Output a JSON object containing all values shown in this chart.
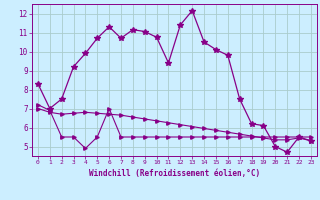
{
  "title": "",
  "xlabel": "Windchill (Refroidissement éolien,°C)",
  "bg_color": "#cceeff",
  "grid_color": "#aacccc",
  "line_color": "#880088",
  "xlim": [
    -0.5,
    23.5
  ],
  "ylim": [
    4.5,
    12.5
  ],
  "xticks": [
    0,
    1,
    2,
    3,
    4,
    5,
    6,
    7,
    8,
    9,
    10,
    11,
    12,
    13,
    14,
    15,
    16,
    17,
    18,
    19,
    20,
    21,
    22,
    23
  ],
  "yticks": [
    5,
    6,
    7,
    8,
    9,
    10,
    11,
    12
  ],
  "series1_x": [
    0,
    1,
    2,
    3,
    4,
    5,
    6,
    7,
    8,
    9,
    10,
    11,
    12,
    13,
    14,
    15,
    16,
    17,
    18,
    19,
    20,
    21,
    22,
    23
  ],
  "series1_y": [
    8.3,
    7.0,
    7.5,
    9.2,
    9.9,
    10.7,
    11.3,
    10.7,
    11.15,
    11.05,
    10.75,
    9.4,
    11.4,
    12.15,
    10.5,
    10.1,
    9.8,
    7.5,
    6.2,
    6.1,
    5.0,
    4.7,
    5.5,
    5.3
  ],
  "series2_x": [
    0,
    1,
    2,
    3,
    4,
    5,
    6,
    7,
    8,
    9,
    10,
    11,
    12,
    13,
    14,
    15,
    16,
    17,
    18,
    19,
    20,
    21,
    22,
    23
  ],
  "series2_y": [
    7.0,
    6.8,
    6.7,
    6.75,
    6.8,
    6.75,
    6.7,
    6.65,
    6.55,
    6.45,
    6.35,
    6.25,
    6.15,
    6.05,
    5.95,
    5.85,
    5.75,
    5.65,
    5.55,
    5.45,
    5.35,
    5.35,
    5.45,
    5.3
  ],
  "series3_x": [
    0,
    1,
    2,
    3,
    4,
    5,
    6,
    7,
    8,
    9,
    10,
    11,
    12,
    13,
    14,
    15,
    16,
    17,
    18,
    19,
    20,
    21,
    22,
    23
  ],
  "series3_y": [
    7.2,
    6.9,
    5.5,
    5.5,
    4.9,
    5.5,
    7.0,
    5.5,
    5.5,
    5.5,
    5.5,
    5.5,
    5.5,
    5.5,
    5.5,
    5.5,
    5.5,
    5.5,
    5.5,
    5.5,
    5.5,
    5.5,
    5.5,
    5.5
  ]
}
